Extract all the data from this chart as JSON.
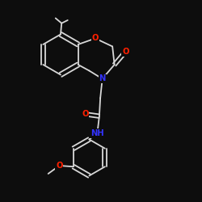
{
  "background_color": "#0d0d0d",
  "bond_color": "#d8d8d8",
  "atom_colors": {
    "O": "#ff2000",
    "N": "#3333ff",
    "C": "#d8d8d8"
  },
  "figsize": [
    2.5,
    2.5
  ],
  "dpi": 100
}
